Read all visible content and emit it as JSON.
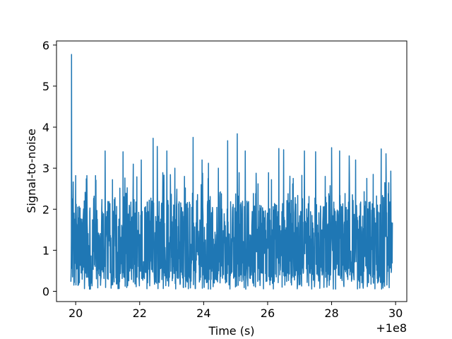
{
  "chart_data": {
    "type": "line",
    "title": "",
    "xlabel": "Time (s)",
    "ylabel": "Signal-to-noise",
    "x_offset_label": "+1e8",
    "xlim": [
      19.4,
      30.35
    ],
    "ylim": [
      -0.25,
      6.1
    ],
    "x_ticks": [
      20,
      22,
      24,
      26,
      28,
      30
    ],
    "x_tick_labels": [
      "20",
      "22",
      "24",
      "26",
      "28",
      "30"
    ],
    "y_ticks": [
      0,
      1,
      2,
      3,
      4,
      5,
      6
    ],
    "y_tick_labels": [
      "0",
      "1",
      "2",
      "3",
      "4",
      "5",
      "6"
    ],
    "grid": false,
    "line_color": "#1f77b4",
    "series": [
      {
        "x_range": [
          19.85,
          29.9
        ],
        "noise_floor": 0.05,
        "typical_band": [
          0.2,
          2.2
        ],
        "peaks": [
          {
            "x": 19.87,
            "y": 5.77
          },
          {
            "x": 20.0,
            "y": 2.82
          },
          {
            "x": 20.35,
            "y": 2.82
          },
          {
            "x": 20.62,
            "y": 2.82
          },
          {
            "x": 20.92,
            "y": 3.42
          },
          {
            "x": 21.15,
            "y": 2.72
          },
          {
            "x": 21.48,
            "y": 3.4
          },
          {
            "x": 21.8,
            "y": 3.1
          },
          {
            "x": 22.05,
            "y": 3.2
          },
          {
            "x": 22.42,
            "y": 3.73
          },
          {
            "x": 22.55,
            "y": 3.53
          },
          {
            "x": 22.85,
            "y": 3.42
          },
          {
            "x": 23.1,
            "y": 3.0
          },
          {
            "x": 23.4,
            "y": 2.8
          },
          {
            "x": 23.67,
            "y": 3.75
          },
          {
            "x": 23.95,
            "y": 3.2
          },
          {
            "x": 24.15,
            "y": 3.12
          },
          {
            "x": 24.46,
            "y": 3.0
          },
          {
            "x": 24.75,
            "y": 3.67
          },
          {
            "x": 25.05,
            "y": 3.84
          },
          {
            "x": 25.3,
            "y": 3.42
          },
          {
            "x": 25.7,
            "y": 2.62
          },
          {
            "x": 26.12,
            "y": 2.72
          },
          {
            "x": 26.35,
            "y": 3.48
          },
          {
            "x": 26.5,
            "y": 3.45
          },
          {
            "x": 26.8,
            "y": 2.75
          },
          {
            "x": 27.15,
            "y": 3.42
          },
          {
            "x": 27.5,
            "y": 3.4
          },
          {
            "x": 27.8,
            "y": 2.8
          },
          {
            "x": 28.0,
            "y": 3.5
          },
          {
            "x": 28.25,
            "y": 3.42
          },
          {
            "x": 28.55,
            "y": 3.3
          },
          {
            "x": 28.75,
            "y": 3.2
          },
          {
            "x": 29.1,
            "y": 2.75
          },
          {
            "x": 29.3,
            "y": 2.85
          },
          {
            "x": 29.55,
            "y": 3.47
          },
          {
            "x": 29.7,
            "y": 3.35
          },
          {
            "x": 29.85,
            "y": 2.93
          }
        ]
      }
    ]
  }
}
